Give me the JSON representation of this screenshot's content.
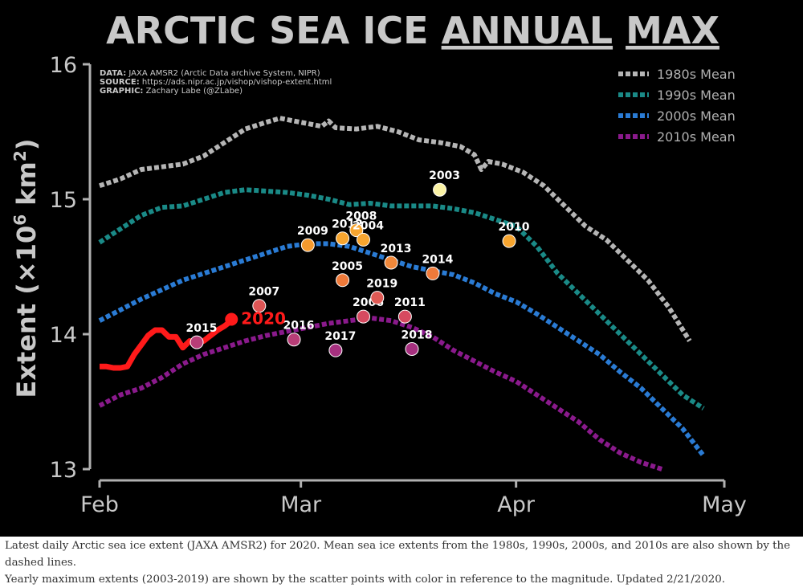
{
  "chart_data": {
    "type": "line",
    "title": {
      "part1": "ARCTIC SEA ICE ",
      "part2": "ANNUAL",
      "part3": " ",
      "part4": "MAX"
    },
    "credits": [
      {
        "label": "DATA:",
        "text": " JAXA AMSR2 (Arctic Data archive System, NIPR)"
      },
      {
        "label": "SOURCE:",
        "text": " https://ads.nipr.ac.jp/vishop/vishop-extent.html"
      },
      {
        "label": "GRAPHIC:",
        "text": " Zachary Labe (@ZLabe)"
      }
    ],
    "ylabel": {
      "main": "Extent (×10",
      "sup": "6",
      "mid": " km",
      "sup2": "2",
      "end": ")"
    },
    "ylim": [
      13,
      16
    ],
    "yticks": [
      "13",
      "14",
      "15",
      "16"
    ],
    "xlim": [
      0,
      89
    ],
    "xticks": [
      {
        "label": "Feb",
        "day": 0
      },
      {
        "label": "Mar",
        "day": 29
      },
      {
        "label": "Apr",
        "day": 60
      },
      {
        "label": "May",
        "day": 90
      }
    ],
    "legend_position": "top-right",
    "series": [
      {
        "name": "1980s Mean",
        "color": "#b5b5b5",
        "points": [
          [
            0,
            15.1
          ],
          [
            3,
            15.15
          ],
          [
            6,
            15.22
          ],
          [
            9,
            15.24
          ],
          [
            12,
            15.26
          ],
          [
            15,
            15.32
          ],
          [
            18,
            15.42
          ],
          [
            21,
            15.52
          ],
          [
            24,
            15.57
          ],
          [
            26,
            15.6
          ],
          [
            28,
            15.58
          ],
          [
            30,
            15.56
          ],
          [
            32,
            15.54
          ],
          [
            33,
            15.58
          ],
          [
            34,
            15.53
          ],
          [
            37,
            15.52
          ],
          [
            40,
            15.54
          ],
          [
            43,
            15.5
          ],
          [
            46,
            15.44
          ],
          [
            49,
            15.42
          ],
          [
            52,
            15.39
          ],
          [
            54,
            15.33
          ],
          [
            55,
            15.22
          ],
          [
            56,
            15.28
          ],
          [
            58,
            15.26
          ],
          [
            61,
            15.2
          ],
          [
            64,
            15.1
          ],
          [
            67,
            14.95
          ],
          [
            70,
            14.8
          ],
          [
            73,
            14.7
          ],
          [
            76,
            14.55
          ],
          [
            79,
            14.4
          ],
          [
            82,
            14.2
          ],
          [
            85,
            13.95
          ]
        ]
      },
      {
        "name": "1990s Mean",
        "color": "#1a8a87",
        "points": [
          [
            0,
            14.68
          ],
          [
            3,
            14.78
          ],
          [
            6,
            14.88
          ],
          [
            9,
            14.94
          ],
          [
            12,
            14.95
          ],
          [
            15,
            15.0
          ],
          [
            18,
            15.05
          ],
          [
            21,
            15.07
          ],
          [
            24,
            15.06
          ],
          [
            27,
            15.05
          ],
          [
            30,
            15.03
          ],
          [
            33,
            15.0
          ],
          [
            36,
            14.96
          ],
          [
            39,
            14.97
          ],
          [
            42,
            14.95
          ],
          [
            45,
            14.95
          ],
          [
            48,
            14.95
          ],
          [
            51,
            14.93
          ],
          [
            54,
            14.9
          ],
          [
            57,
            14.85
          ],
          [
            60,
            14.8
          ],
          [
            63,
            14.65
          ],
          [
            66,
            14.45
          ],
          [
            69,
            14.3
          ],
          [
            72,
            14.15
          ],
          [
            75,
            14.0
          ],
          [
            78,
            13.85
          ],
          [
            81,
            13.7
          ],
          [
            84,
            13.55
          ],
          [
            87,
            13.45
          ]
        ]
      },
      {
        "name": "2000s Mean",
        "color": "#2a7bd4",
        "points": [
          [
            0,
            14.1
          ],
          [
            3,
            14.18
          ],
          [
            6,
            14.26
          ],
          [
            9,
            14.33
          ],
          [
            12,
            14.4
          ],
          [
            15,
            14.45
          ],
          [
            18,
            14.5
          ],
          [
            21,
            14.55
          ],
          [
            24,
            14.6
          ],
          [
            27,
            14.65
          ],
          [
            30,
            14.67
          ],
          [
            33,
            14.67
          ],
          [
            36,
            14.65
          ],
          [
            39,
            14.6
          ],
          [
            42,
            14.55
          ],
          [
            45,
            14.5
          ],
          [
            48,
            14.47
          ],
          [
            51,
            14.44
          ],
          [
            54,
            14.38
          ],
          [
            57,
            14.3
          ],
          [
            60,
            14.24
          ],
          [
            63,
            14.15
          ],
          [
            66,
            14.05
          ],
          [
            69,
            13.95
          ],
          [
            72,
            13.85
          ],
          [
            75,
            13.72
          ],
          [
            78,
            13.6
          ],
          [
            81,
            13.45
          ],
          [
            84,
            13.3
          ],
          [
            87,
            13.1
          ]
        ]
      },
      {
        "name": "2010s Mean",
        "color": "#8a1a8c",
        "points": [
          [
            0,
            13.47
          ],
          [
            3,
            13.55
          ],
          [
            6,
            13.6
          ],
          [
            9,
            13.68
          ],
          [
            12,
            13.78
          ],
          [
            15,
            13.85
          ],
          [
            18,
            13.9
          ],
          [
            21,
            13.95
          ],
          [
            24,
            13.99
          ],
          [
            27,
            14.02
          ],
          [
            30,
            14.05
          ],
          [
            33,
            14.08
          ],
          [
            36,
            14.1
          ],
          [
            39,
            14.12
          ],
          [
            42,
            14.1
          ],
          [
            45,
            14.05
          ],
          [
            48,
            13.98
          ],
          [
            51,
            13.88
          ],
          [
            54,
            13.8
          ],
          [
            57,
            13.72
          ],
          [
            60,
            13.65
          ],
          [
            63,
            13.55
          ],
          [
            66,
            13.45
          ],
          [
            69,
            13.35
          ],
          [
            72,
            13.22
          ],
          [
            75,
            13.12
          ],
          [
            78,
            13.05
          ],
          [
            81,
            13.0
          ]
        ]
      },
      {
        "name": "2020",
        "color": "#ff1a1a",
        "points": [
          [
            0,
            13.76
          ],
          [
            1,
            13.76
          ],
          [
            2,
            13.75
          ],
          [
            3,
            13.75
          ],
          [
            4,
            13.76
          ],
          [
            5,
            13.85
          ],
          [
            6,
            13.92
          ],
          [
            7,
            13.99
          ],
          [
            8,
            14.03
          ],
          [
            9,
            14.03
          ],
          [
            10,
            13.98
          ],
          [
            11,
            13.98
          ],
          [
            12,
            13.9
          ],
          [
            13,
            13.95
          ],
          [
            14,
            13.93
          ],
          [
            15,
            13.95
          ],
          [
            16,
            13.99
          ],
          [
            17,
            14.03
          ],
          [
            18,
            14.06
          ],
          [
            19,
            14.1
          ]
        ]
      }
    ],
    "current": {
      "label": "2020",
      "day": 19,
      "value": 14.11
    },
    "scatter": [
      {
        "year": "2015",
        "day": 14,
        "value": 13.94,
        "color": "#b83d77"
      },
      {
        "year": "2007",
        "day": 23,
        "value": 14.21,
        "color": "#dd5555"
      },
      {
        "year": "2016",
        "day": 28,
        "value": 13.96,
        "color": "#b83d77"
      },
      {
        "year": "2009",
        "day": 30,
        "value": 14.66,
        "color": "#f59a2e"
      },
      {
        "year": "2012",
        "day": 35,
        "value": 14.71,
        "color": "#f7a52f"
      },
      {
        "year": "2008",
        "day": 37,
        "value": 14.77,
        "color": "#f7a52f"
      },
      {
        "year": "2004",
        "day": 38,
        "value": 14.7,
        "color": "#f7a52f"
      },
      {
        "year": "2005",
        "day": 35,
        "value": 14.4,
        "color": "#ef7a3a"
      },
      {
        "year": "2006",
        "day": 38,
        "value": 14.13,
        "color": "#d64a60"
      },
      {
        "year": "2017",
        "day": 34,
        "value": 13.88,
        "color": "#a6307f"
      },
      {
        "year": "2019",
        "day": 40,
        "value": 14.27,
        "color": "#df5a55"
      },
      {
        "year": "2013",
        "day": 42,
        "value": 14.53,
        "color": "#f0883a"
      },
      {
        "year": "2011",
        "day": 44,
        "value": 14.13,
        "color": "#d64a60"
      },
      {
        "year": "2018",
        "day": 45,
        "value": 13.89,
        "color": "#a6307f"
      },
      {
        "year": "2014",
        "day": 48,
        "value": 14.45,
        "color": "#ef7a3a"
      },
      {
        "year": "2003",
        "day": 49,
        "value": 15.07,
        "color": "#fbf3a5"
      },
      {
        "year": "2010",
        "day": 59,
        "value": 14.69,
        "color": "#f7a52f"
      }
    ]
  },
  "caption": {
    "line1": "Latest daily Arctic sea ice extent (JAXA AMSR2) for 2020. Mean sea ice extents from the 1980s, 1990s, 2000s, and 2010s are also shown by the dashed lines.",
    "line2": "Yearly maximum extents (2003-2019) are shown by the scatter points with color in reference to the magnitude. Updated 2/21/2020."
  }
}
